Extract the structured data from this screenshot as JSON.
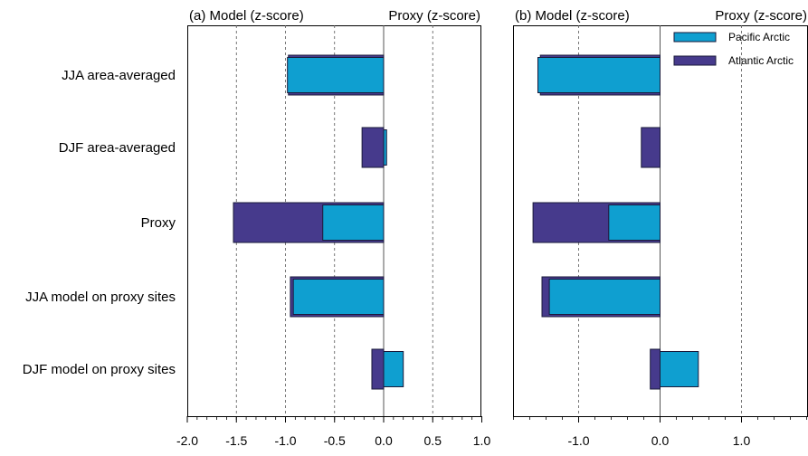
{
  "categories": [
    "JJA area-averaged",
    "DJF area-averaged",
    "Proxy",
    "JJA model on proxy sites",
    "DJF model on proxy sites"
  ],
  "colors": {
    "pacific": "#0f9fd0",
    "atlantic": "#463a8c",
    "outline": "#1a1a3a"
  },
  "legend": {
    "placement": "top-right of panel (b)",
    "entries": [
      "Pacific Arctic",
      "Atlantic Arctic"
    ]
  },
  "chart_data": [
    {
      "type": "bar",
      "orientation": "horizontal",
      "title_left": "(a) Model (z-score)",
      "title_right": "Proxy (z-score)",
      "categories": [
        "JJA area-averaged",
        "DJF area-averaged",
        "Proxy",
        "JJA model on proxy sites",
        "DJF model on proxy sites"
      ],
      "series": [
        {
          "name": "Atlantic Arctic",
          "values": [
            -0.97,
            -0.22,
            -1.53,
            -0.95,
            -0.12
          ]
        },
        {
          "name": "Pacific Arctic",
          "values": [
            -0.98,
            0.03,
            -0.62,
            -0.92,
            0.2
          ]
        }
      ],
      "xlim": [
        -2.0,
        1.0
      ],
      "xticks": [
        -2.0,
        -1.5,
        -1.0,
        -0.5,
        0.0,
        0.5,
        1.0
      ],
      "xtick_labels": [
        "-2.0",
        "-1.5",
        "-1.0",
        "-0.5",
        "0.0",
        "0.5",
        "1.0"
      ],
      "grid": "vertical dashed"
    },
    {
      "type": "bar",
      "orientation": "horizontal",
      "title_left": "(b) Model (z-score)",
      "title_right": "Proxy (z-score)",
      "categories": [
        "JJA area-averaged",
        "DJF area-averaged",
        "Proxy",
        "JJA model on proxy sites",
        "DJF model on proxy sites"
      ],
      "series": [
        {
          "name": "Atlantic Arctic",
          "values": [
            -1.47,
            -0.23,
            -1.56,
            -1.45,
            -0.12
          ]
        },
        {
          "name": "Pacific Arctic",
          "values": [
            -1.5,
            0.0,
            -0.63,
            -1.36,
            0.47
          ]
        }
      ],
      "xlim": [
        -1.8,
        1.8
      ],
      "xticks": [
        -1.0,
        0.0,
        1.0
      ],
      "xtick_labels": [
        "-1.0",
        "0.0",
        "1.0"
      ],
      "grid": "vertical dashed"
    }
  ]
}
